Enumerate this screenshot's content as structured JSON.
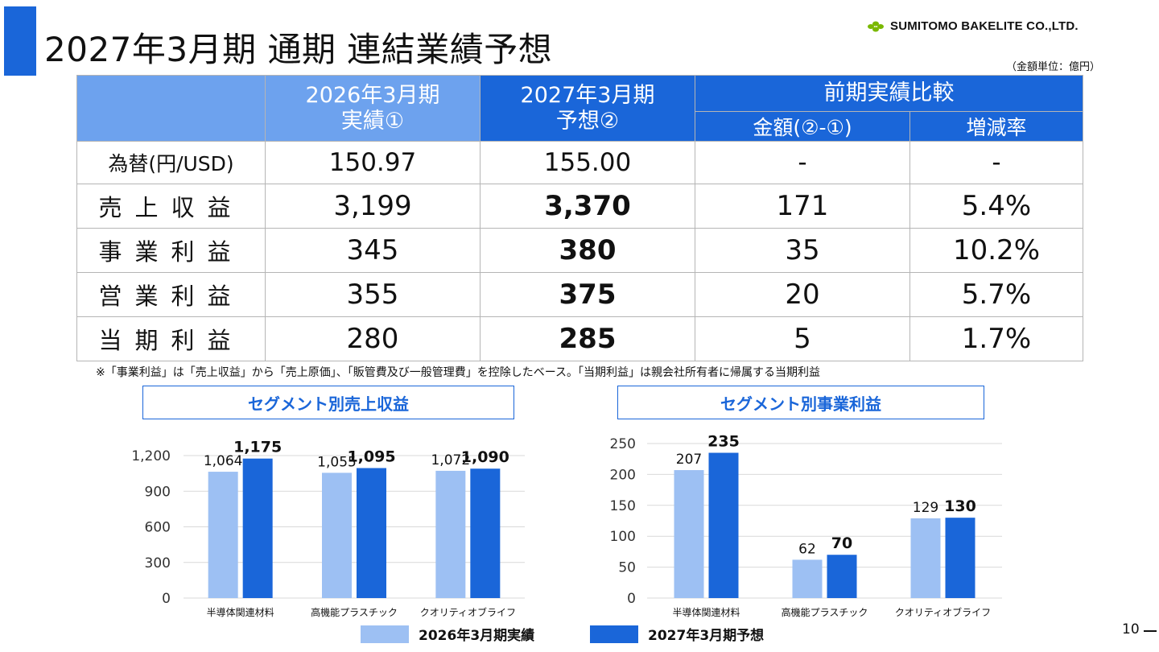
{
  "title": "2027年3月期 通期 連結業績予想",
  "company": "SUMITOMO BAKELITE CO.,LTD.",
  "unit_note": "（金額単位：億円）",
  "colors": {
    "accent": "#1a66d9",
    "light_blue": "#9dc0f3",
    "dark_blue": "#1a66d9",
    "header_light": "#6da2ee"
  },
  "table": {
    "col_actual_l1": "2026年3月期",
    "col_actual_l2": "実績①",
    "col_forecast_l1": "2027年3月期",
    "col_forecast_l2": "予想②",
    "col_comparison": "前期実績比較",
    "col_amount": "金額(②-①)",
    "col_rate": "増減率",
    "rows": [
      {
        "label": "為替(円/USD)",
        "actual": "150.97",
        "forecast": "155.00",
        "amount": "-",
        "rate": "-"
      },
      {
        "label": "売上収益",
        "actual": "3,199",
        "forecast": "3,370",
        "amount": "171",
        "rate": "5.4%"
      },
      {
        "label": "事業利益",
        "actual": "345",
        "forecast": "380",
        "amount": "35",
        "rate": "10.2%"
      },
      {
        "label": "営業利益",
        "actual": "355",
        "forecast": "375",
        "amount": "20",
        "rate": "5.7%"
      },
      {
        "label": "当期利益",
        "actual": "280",
        "forecast": "285",
        "amount": "5",
        "rate": "1.7%"
      }
    ]
  },
  "footnote": "※「事業利益」は「売上収益」から「売上原価」、「販管費及び一般管理費」を控除したベース。「当期利益」は親会社所有者に帰属する当期利益",
  "legend": {
    "actual": "2026年3月期実績",
    "forecast": "2027年3月期予想"
  },
  "page_number": "10",
  "chart_data": [
    {
      "type": "bar",
      "title": "セグメント別売上収益",
      "categories": [
        "半導体関連材料",
        "高機能プラスチック",
        "クオリティオブライフ"
      ],
      "series": [
        {
          "name": "2026年3月期実績",
          "values": [
            1064,
            1055,
            1072
          ]
        },
        {
          "name": "2027年3月期予想",
          "values": [
            1175,
            1095,
            1090
          ]
        }
      ],
      "ylim": [
        0,
        1200
      ],
      "yticks": [
        0,
        300,
        600,
        900,
        1200
      ],
      "legend_position": "bottom",
      "grid": true
    },
    {
      "type": "bar",
      "title": "セグメント別事業利益",
      "categories": [
        "半導体関連材料",
        "高機能プラスチック",
        "クオリティオブライフ"
      ],
      "series": [
        {
          "name": "2026年3月期実績",
          "values": [
            207,
            62,
            129
          ]
        },
        {
          "name": "2027年3月期予想",
          "values": [
            235,
            70,
            130
          ]
        }
      ],
      "ylim": [
        0,
        250
      ],
      "yticks": [
        0,
        50,
        100,
        150,
        200,
        250
      ],
      "legend_position": "bottom",
      "grid": true
    }
  ]
}
